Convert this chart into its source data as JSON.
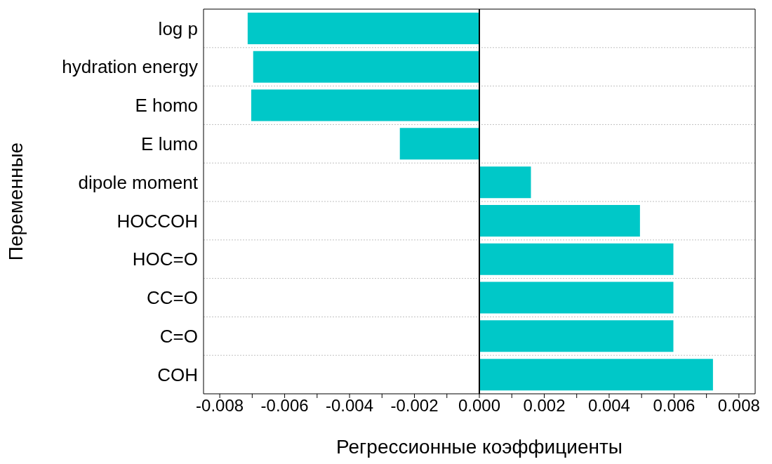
{
  "chart_data": {
    "type": "bar",
    "orientation": "horizontal",
    "xlabel": "Регрессионные коэффициенты",
    "ylabel": "Переменные",
    "categories": [
      "log p",
      "hydration energy",
      "E homo",
      "E lumo",
      "dipole moment",
      "HOCCOH",
      "HOC=O",
      "CC=O",
      "C=O",
      "COH"
    ],
    "values": [
      -0.00714,
      -0.00697,
      -0.00703,
      -0.00245,
      0.00159,
      0.00495,
      0.00598,
      0.00598,
      0.00598,
      0.0072
    ],
    "color": "#00c8c8",
    "xlim": [
      -0.0085,
      0.0085
    ],
    "xticks": [
      {
        "value": -0.008,
        "label": "-0.008"
      },
      {
        "value": -0.007,
        "label": null
      },
      {
        "value": -0.006,
        "label": "-0.006"
      },
      {
        "value": -0.005,
        "label": null
      },
      {
        "value": -0.004,
        "label": "-0.004"
      },
      {
        "value": -0.003,
        "label": null
      },
      {
        "value": -0.002,
        "label": "-0.002"
      },
      {
        "value": -0.001,
        "label": null
      },
      {
        "value": 0,
        "label": "0.000"
      },
      {
        "value": 0.001,
        "label": null
      },
      {
        "value": 0.002,
        "label": "0.002"
      },
      {
        "value": 0.003,
        "label": null
      },
      {
        "value": 0.004,
        "label": "0.004"
      },
      {
        "value": 0.005,
        "label": null
      },
      {
        "value": 0.006,
        "label": "0.006"
      },
      {
        "value": 0.007,
        "label": null
      },
      {
        "value": 0.008,
        "label": "0.008"
      }
    ],
    "ref_lines": [
      {
        "axis": "x",
        "value": 0,
        "color": "#000000"
      }
    ],
    "grid": "y"
  }
}
